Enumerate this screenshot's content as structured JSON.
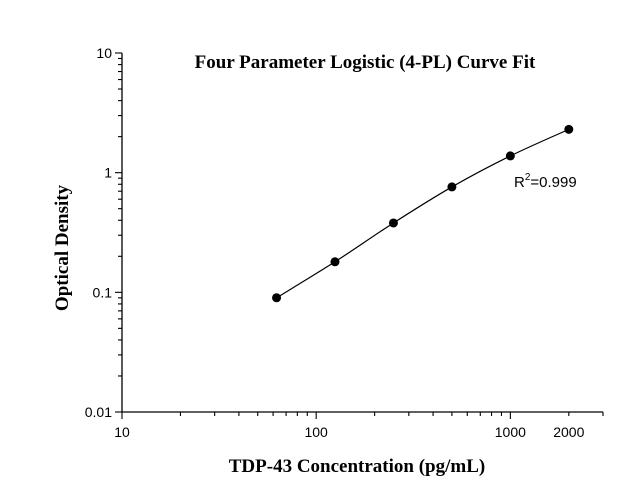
{
  "chart_data": {
    "type": "scatter",
    "title": "Four Parameter Logistic (4-PL) Curve Fit",
    "xlabel": "TDP-43 Concentration (pg/mL)",
    "ylabel": "Optical Density",
    "x_scale": "log",
    "y_scale": "log",
    "xlim": [
      10,
      3000
    ],
    "ylim": [
      0.01,
      10
    ],
    "x_ticks": [
      {
        "value": 10,
        "label": "10"
      },
      {
        "value": 100,
        "label": "100"
      },
      {
        "value": 1000,
        "label": "1000"
      },
      {
        "value": 2000,
        "label": "2000"
      }
    ],
    "y_ticks": [
      {
        "value": 10,
        "label": "10"
      },
      {
        "value": 1,
        "label": "1"
      },
      {
        "value": 0.1,
        "label": "0.1"
      },
      {
        "value": 0.01,
        "label": "0.01"
      }
    ],
    "series": [
      {
        "x": [
          62.5,
          125,
          250,
          500,
          1000,
          2000
        ],
        "y": [
          0.09,
          0.18,
          0.38,
          0.76,
          1.38,
          2.3
        ]
      }
    ],
    "annotation": {
      "r_symbol": "R",
      "superscript": "2",
      "value_text": "=0.999"
    },
    "grid": false,
    "legend": "none"
  }
}
